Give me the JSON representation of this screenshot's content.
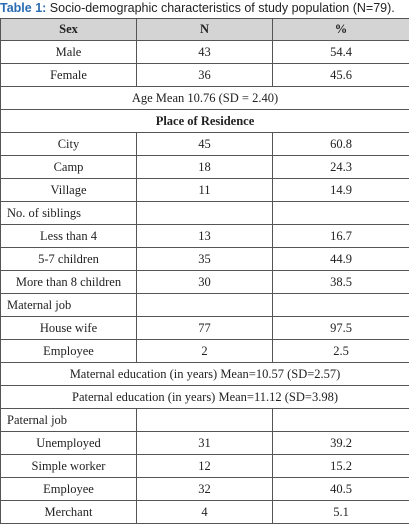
{
  "caption": {
    "label": "Table 1:",
    "text": "Socio-demographic characteristics of study population (N=79)."
  },
  "table": {
    "header": [
      "Sex",
      "N",
      "%"
    ],
    "rows": [
      [
        "Male",
        43,
        54.4
      ],
      [
        "Female",
        36,
        45.6
      ],
      [
        "Age Mean 10.76 (SD = 2.40)"
      ],
      [
        "Place of Residence"
      ],
      [
        "City",
        45,
        60.8
      ],
      [
        "Camp",
        18,
        24.3
      ],
      [
        "Village",
        11,
        14.9
      ],
      [
        "No. of siblings"
      ],
      [
        "Less than 4",
        13,
        16.7
      ],
      [
        "5-7 children",
        35,
        44.9
      ],
      [
        "More than 8 children",
        30,
        38.5
      ],
      [
        "Maternal job"
      ],
      [
        "House wife",
        77,
        97.5
      ],
      [
        "Employee",
        2,
        2.5
      ],
      [
        "Maternal education (in years) Mean=10.57 (SD=2.57)"
      ],
      [
        "Paternal education (in years) Mean=11.12 (SD=3.98)"
      ],
      [
        "Paternal job"
      ],
      [
        "Unemployed",
        31,
        39.2
      ],
      [
        "Simple worker",
        12,
        15.2
      ],
      [
        "Employee",
        32,
        40.5
      ],
      [
        "Merchant",
        4,
        5.1
      ]
    ]
  }
}
